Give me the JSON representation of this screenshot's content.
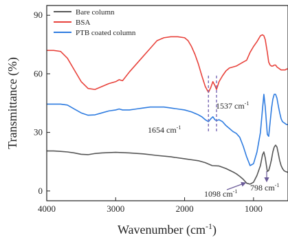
{
  "chart_data": {
    "type": "line",
    "xlabel": "Wavenumber (cm",
    "xlabel_sup": "-1",
    "xlabel_tail": ")",
    "ylabel": "Transmittance (%)",
    "xlim": [
      4000,
      500
    ],
    "ylim": [
      -5,
      95
    ],
    "x_reversed": true,
    "x_ticks": [
      4000,
      3000,
      2000,
      1000
    ],
    "y_ticks": [
      0,
      30,
      60,
      90
    ],
    "legend": [
      "Bare column",
      "BSA",
      "PTB coated column"
    ],
    "series": [
      {
        "name": "Bare column",
        "color": "#555555",
        "x": [
          4000,
          3900,
          3800,
          3700,
          3600,
          3500,
          3400,
          3300,
          3200,
          3000,
          2800,
          2600,
          2400,
          2200,
          2000,
          1900,
          1800,
          1700,
          1600,
          1500,
          1400,
          1300,
          1250,
          1200,
          1150,
          1100,
          1050,
          1000,
          950,
          900,
          870,
          850,
          830,
          800,
          780,
          760,
          740,
          720,
          700,
          680,
          660,
          640,
          620,
          600,
          580,
          560,
          540,
          520,
          500
        ],
        "y": [
          20.5,
          20.5,
          20.3,
          20,
          19.5,
          18.8,
          18.6,
          19.2,
          19.5,
          19.8,
          19.5,
          19,
          18.2,
          17.5,
          16.5,
          16,
          15.5,
          14.5,
          13,
          12.8,
          11.5,
          9.8,
          8.8,
          7.5,
          6,
          4,
          3.5,
          4.5,
          8,
          13,
          18.5,
          20,
          17,
          10,
          10.5,
          13,
          16,
          20,
          22.5,
          23.5,
          22.5,
          19,
          15.5,
          13,
          11.5,
          10.5,
          10,
          9.8,
          9.5
        ]
      },
      {
        "name": "BSA",
        "color": "#e8423b",
        "x": [
          4000,
          3900,
          3800,
          3700,
          3600,
          3500,
          3400,
          3300,
          3200,
          3100,
          3000,
          2950,
          2900,
          2800,
          2700,
          2600,
          2500,
          2400,
          2300,
          2200,
          2100,
          2000,
          1950,
          1900,
          1850,
          1800,
          1750,
          1700,
          1654,
          1620,
          1590,
          1560,
          1537,
          1500,
          1450,
          1400,
          1350,
          1300,
          1250,
          1200,
          1150,
          1100,
          1050,
          1000,
          950,
          900,
          870,
          850,
          830,
          800,
          780,
          760,
          740,
          720,
          700,
          680,
          660,
          640,
          620,
          600,
          580,
          560,
          540,
          520,
          500
        ],
        "y": [
          72,
          72,
          71.5,
          68,
          62,
          56,
          52.5,
          52,
          53.5,
          55,
          56,
          57,
          56.5,
          61,
          65,
          69,
          73,
          77,
          78.5,
          79,
          79,
          78.5,
          77,
          74,
          70,
          65,
          59,
          53.5,
          50.5,
          53,
          56,
          54,
          52,
          56,
          59,
          61.5,
          63,
          63.5,
          64,
          65,
          66,
          67,
          71,
          74,
          76.5,
          79.5,
          80,
          79.5,
          77.5,
          71,
          66,
          64.5,
          64,
          64,
          64.5,
          64.5,
          63.5,
          63,
          62.5,
          62,
          62,
          62,
          62,
          62.5,
          62.5
        ]
      },
      {
        "name": "PTB coated column",
        "color": "#2d7be0",
        "x": [
          4000,
          3900,
          3800,
          3700,
          3600,
          3500,
          3400,
          3300,
          3200,
          3100,
          3000,
          2950,
          2900,
          2800,
          2700,
          2600,
          2500,
          2400,
          2300,
          2200,
          2100,
          2000,
          1900,
          1800,
          1750,
          1700,
          1654,
          1620,
          1590,
          1560,
          1537,
          1500,
          1450,
          1400,
          1350,
          1300,
          1250,
          1200,
          1150,
          1100,
          1050,
          1000,
          950,
          900,
          870,
          850,
          830,
          800,
          780,
          760,
          740,
          720,
          700,
          680,
          660,
          640,
          620,
          600,
          580,
          560,
          540,
          520,
          500
        ],
        "y": [
          44.5,
          44.5,
          44.5,
          44,
          42,
          40,
          38.8,
          39,
          40,
          41,
          41.5,
          42,
          41.5,
          41.5,
          42,
          42.5,
          43,
          43,
          43,
          42.5,
          42,
          41.5,
          40.5,
          39,
          38,
          36.5,
          35.5,
          37,
          38,
          36.5,
          36,
          36.5,
          35.5,
          33.5,
          32,
          30.5,
          29.5,
          27.5,
          23,
          17.5,
          13,
          14,
          20,
          30,
          42,
          49.5,
          43,
          29,
          28,
          35,
          42,
          47,
          49.5,
          49.5,
          47.5,
          43.5,
          40,
          37,
          35.5,
          35,
          34.5,
          34,
          34
        ]
      }
    ],
    "annotations": {
      "left": {
        "prefix": "1654 cm",
        "sup": "-1"
      },
      "right": {
        "prefix": "1537 cm",
        "sup": "-1"
      },
      "bottom_left": {
        "prefix": "1098 cm",
        "sup": "-1"
      },
      "bottom_right": {
        "prefix": "798 cm",
        "sup": "-1"
      }
    },
    "guide_lines_x": [
      1654,
      1537
    ],
    "guide_color": "#7a6bb5",
    "annotation_arrow_color": "#6a5a98",
    "grid": false,
    "legend_position": "top-left"
  }
}
